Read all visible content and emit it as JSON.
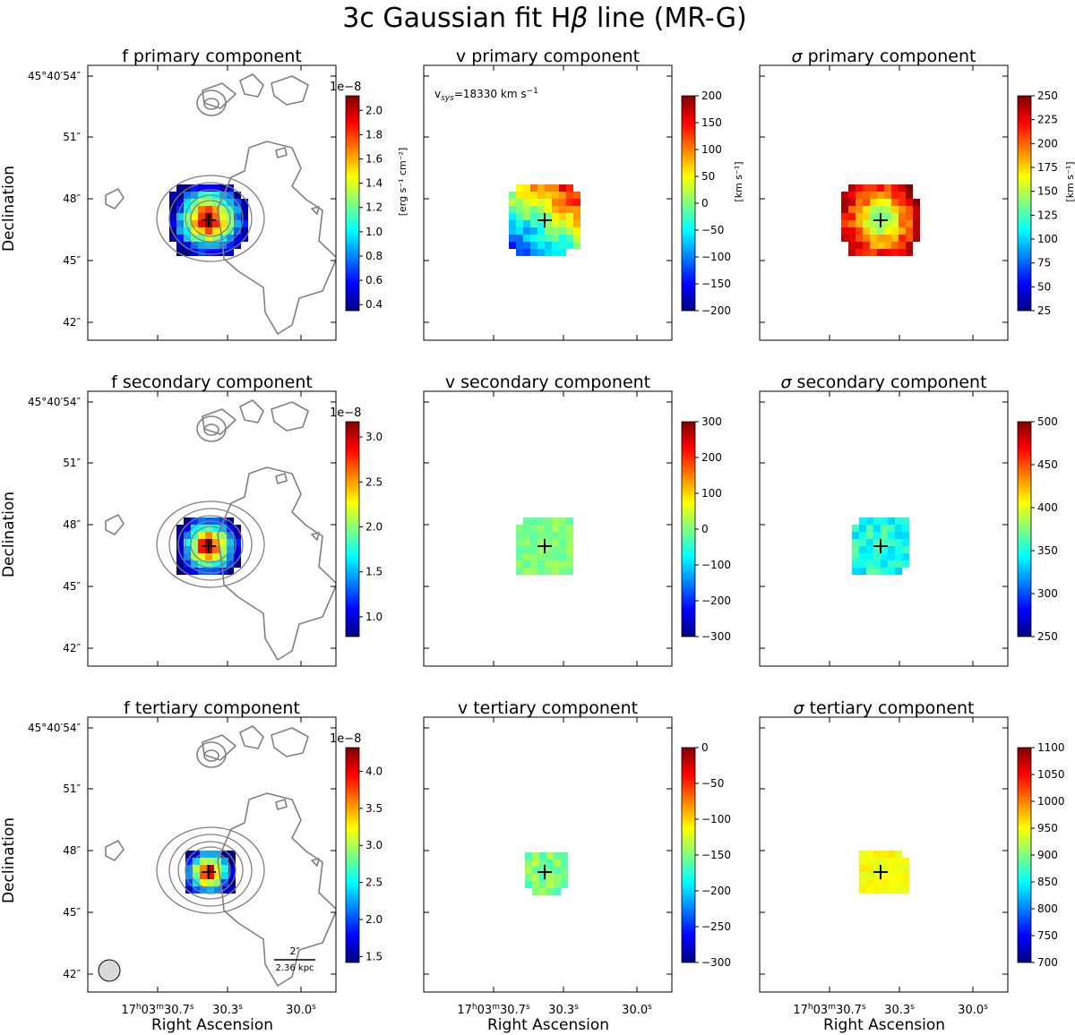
{
  "figure": {
    "title": "3c Gaussian fit Hβ line (MR-G)",
    "title_parts": {
      "prefix": "3c Gaussian fit H",
      "greek": "β",
      "suffix": " line (MR-G)"
    }
  },
  "axes": {
    "ylabel": "Declination",
    "xlabel": "Right Ascension",
    "dec_ticks": [
      "45°40′54″",
      "51″",
      "48″",
      "45″",
      "42″"
    ],
    "ra_ticks": [
      {
        "h": "17",
        "m": "03",
        "s": "30.7"
      },
      {
        "s": "30.3"
      },
      {
        "s": "30.0"
      }
    ]
  },
  "annotations": {
    "vsys": "v_sys=18330 km s⁻¹",
    "vsys_parts": {
      "v": "v",
      "sub": "sys",
      "rest": "=18330 km s",
      "exp": "−1"
    },
    "scalebar_top": "2″",
    "scalebar_bottom": "2.36 kpc",
    "colorbar_offset": "1e−8",
    "flux_unit": "[erg s⁻¹ cm⁻²]",
    "vel_unit": "[km s⁻¹]"
  },
  "colors": {
    "contour": "#808080",
    "colormap": "jet",
    "marker": "#000000",
    "beam_fill": "#d9d9d9"
  },
  "panels": [
    {
      "row": 0,
      "col": 0,
      "quantity": "f",
      "title_prefix": "f",
      "title_greek": "",
      "title_rest": "primary component",
      "colorbar": {
        "min": 0.35,
        "max": 2.12,
        "ticks": [
          0.4,
          0.6,
          0.8,
          1.0,
          1.2,
          1.4,
          1.6,
          1.8,
          2.0
        ],
        "labels": [
          "0.4",
          "0.6",
          "0.8",
          "1.0",
          "1.2",
          "1.4",
          "1.6",
          "1.8",
          "2.0"
        ],
        "offset": "1e−8",
        "unit": "[erg s⁻¹ cm⁻²]"
      }
    },
    {
      "row": 0,
      "col": 1,
      "quantity": "v",
      "title_prefix": "v",
      "title_greek": "",
      "title_rest": "primary component",
      "colorbar": {
        "min": -200,
        "max": 200,
        "ticks": [
          200,
          150,
          100,
          50,
          0,
          -50,
          -100,
          -150,
          -200
        ],
        "labels": [
          "200",
          "150",
          "100",
          "50",
          "0",
          "−50",
          "−100",
          "−150",
          "−200"
        ],
        "unit": "[km s⁻¹]"
      }
    },
    {
      "row": 0,
      "col": 2,
      "quantity": "sigma",
      "title_prefix": "",
      "title_greek": "σ",
      "title_rest": "primary component",
      "colorbar": {
        "min": 25,
        "max": 250,
        "ticks": [
          250,
          225,
          200,
          175,
          150,
          125,
          100,
          75,
          50,
          25
        ],
        "labels": [
          "250",
          "225",
          "200",
          "175",
          "150",
          "125",
          "100",
          "75",
          "50",
          "25"
        ],
        "unit": "[km s⁻¹]"
      }
    },
    {
      "row": 1,
      "col": 0,
      "quantity": "f",
      "title_prefix": "f",
      "title_greek": "",
      "title_rest": "secondary component",
      "colorbar": {
        "min": 0.78,
        "max": 3.17,
        "ticks": [
          1.0,
          1.5,
          2.0,
          2.5,
          3.0
        ],
        "labels": [
          "1.0",
          "1.5",
          "2.0",
          "2.5",
          "3.0"
        ],
        "offset": "1e−8"
      }
    },
    {
      "row": 1,
      "col": 1,
      "quantity": "v",
      "title_prefix": "v",
      "title_greek": "",
      "title_rest": "secondary component",
      "colorbar": {
        "min": -300,
        "max": 300,
        "ticks": [
          300,
          200,
          100,
          0,
          -100,
          -200,
          -300
        ],
        "labels": [
          "300",
          "200",
          "100",
          "0",
          "−100",
          "−200",
          "−300"
        ]
      }
    },
    {
      "row": 1,
      "col": 2,
      "quantity": "sigma",
      "title_prefix": "",
      "title_greek": "σ",
      "title_rest": "secondary component",
      "colorbar": {
        "min": 250,
        "max": 500,
        "ticks": [
          500,
          450,
          400,
          350,
          300,
          250
        ],
        "labels": [
          "500",
          "450",
          "400",
          "350",
          "300",
          "250"
        ]
      }
    },
    {
      "row": 2,
      "col": 0,
      "quantity": "f",
      "title_prefix": "f",
      "title_greek": "",
      "title_rest": "tertiary component",
      "colorbar": {
        "min": 1.42,
        "max": 4.32,
        "ticks": [
          1.5,
          2.0,
          2.5,
          3.0,
          3.5,
          4.0
        ],
        "labels": [
          "1.5",
          "2.0",
          "2.5",
          "3.0",
          "3.5",
          "4.0"
        ],
        "offset": "1e−8"
      }
    },
    {
      "row": 2,
      "col": 1,
      "quantity": "v",
      "title_prefix": "v",
      "title_greek": "",
      "title_rest": "tertiary component",
      "colorbar": {
        "min": -300,
        "max": 0,
        "ticks": [
          0,
          -50,
          -100,
          -150,
          -200,
          -250,
          -300
        ],
        "labels": [
          "0",
          "−50",
          "−100",
          "−150",
          "−200",
          "−250",
          "−300"
        ]
      }
    },
    {
      "row": 2,
      "col": 2,
      "quantity": "sigma",
      "title_prefix": "",
      "title_greek": "σ",
      "title_rest": "tertiary component",
      "colorbar": {
        "min": 700,
        "max": 1100,
        "ticks": [
          1100,
          1050,
          1000,
          950,
          900,
          850,
          800,
          750,
          700
        ],
        "labels": [
          "1100",
          "1050",
          "1000",
          "950",
          "900",
          "850",
          "800",
          "750",
          "700"
        ]
      }
    }
  ]
}
